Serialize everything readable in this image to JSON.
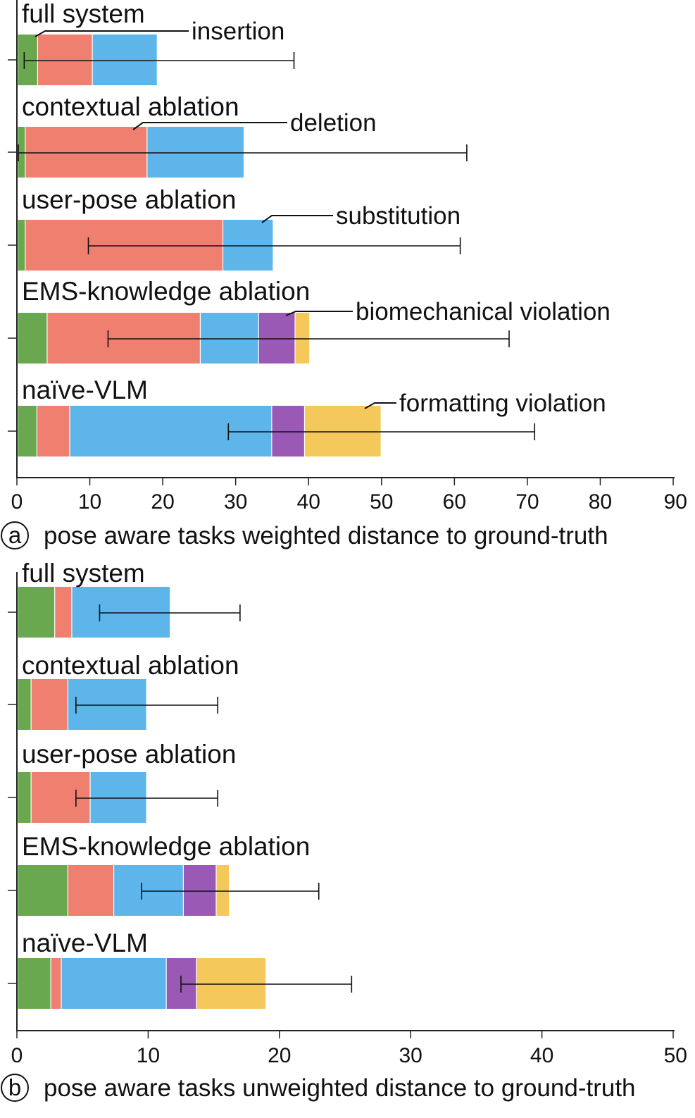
{
  "chart_data": [
    {
      "type": "bar",
      "orientation": "horizontal",
      "stacked": true,
      "panel_letter": "a",
      "title": "pose aware tasks weighted distance to ground-truth",
      "categories": [
        "full system",
        "contextual ablation",
        "user-pose ablation",
        "EMS-knowledge ablation",
        "naïve-VLM"
      ],
      "xlim": [
        0,
        90
      ],
      "xticks": [
        0,
        10,
        20,
        30,
        40,
        50,
        60,
        70,
        80,
        90
      ],
      "series": [
        {
          "name": "insertion",
          "color": "#6aa84f",
          "values": [
            2.7,
            1.0,
            1.0,
            4.0,
            2.6
          ]
        },
        {
          "name": "deletion",
          "color": "#ef7f6f",
          "values": [
            7.5,
            16.7,
            27.1,
            21.0,
            4.5
          ]
        },
        {
          "name": "substitution",
          "color": "#5db5ea",
          "values": [
            8.9,
            13.3,
            6.9,
            8.0,
            27.7
          ]
        },
        {
          "name": "biomechanical violation",
          "color": "#9b59b6",
          "values": [
            0,
            0,
            0,
            5.0,
            4.5
          ]
        },
        {
          "name": "formatting violation",
          "color": "#f4c85a",
          "values": [
            0,
            0,
            0,
            2.0,
            10.5
          ]
        }
      ],
      "error_bars": [
        [
          1.0,
          38.0
        ],
        [
          0.2,
          61.7
        ],
        [
          9.8,
          60.8
        ],
        [
          12.5,
          67.5
        ],
        [
          29.0,
          71.0
        ]
      ],
      "grid": false
    },
    {
      "type": "bar",
      "orientation": "horizontal",
      "stacked": true,
      "panel_letter": "b",
      "title": "pose aware tasks unweighted distance to ground-truth",
      "categories": [
        "full system",
        "contextual ablation",
        "user-pose ablation",
        "EMS-knowledge ablation",
        "naïve-VLM"
      ],
      "xlim": [
        0,
        50
      ],
      "xticks": [
        0,
        10,
        20,
        30,
        40,
        50
      ],
      "series": [
        {
          "name": "insertion",
          "color": "#6aa84f",
          "values": [
            2.8,
            1.0,
            1.0,
            3.8,
            2.5
          ]
        },
        {
          "name": "deletion",
          "color": "#ef7f6f",
          "values": [
            1.3,
            2.8,
            4.5,
            3.5,
            0.8
          ]
        },
        {
          "name": "substitution",
          "color": "#5db5ea",
          "values": [
            7.5,
            6.0,
            4.3,
            5.3,
            8.0
          ]
        },
        {
          "name": "biomechanical violation",
          "color": "#9b59b6",
          "values": [
            0,
            0,
            0,
            2.5,
            2.3
          ]
        },
        {
          "name": "formatting violation",
          "color": "#f4c85a",
          "values": [
            0,
            0,
            0,
            1.0,
            5.3
          ]
        }
      ],
      "error_bars": [
        [
          6.3,
          17.0
        ],
        [
          4.5,
          15.3
        ],
        [
          4.5,
          15.3
        ],
        [
          9.5,
          23.0
        ],
        [
          12.5,
          25.5
        ]
      ],
      "grid": false
    }
  ]
}
